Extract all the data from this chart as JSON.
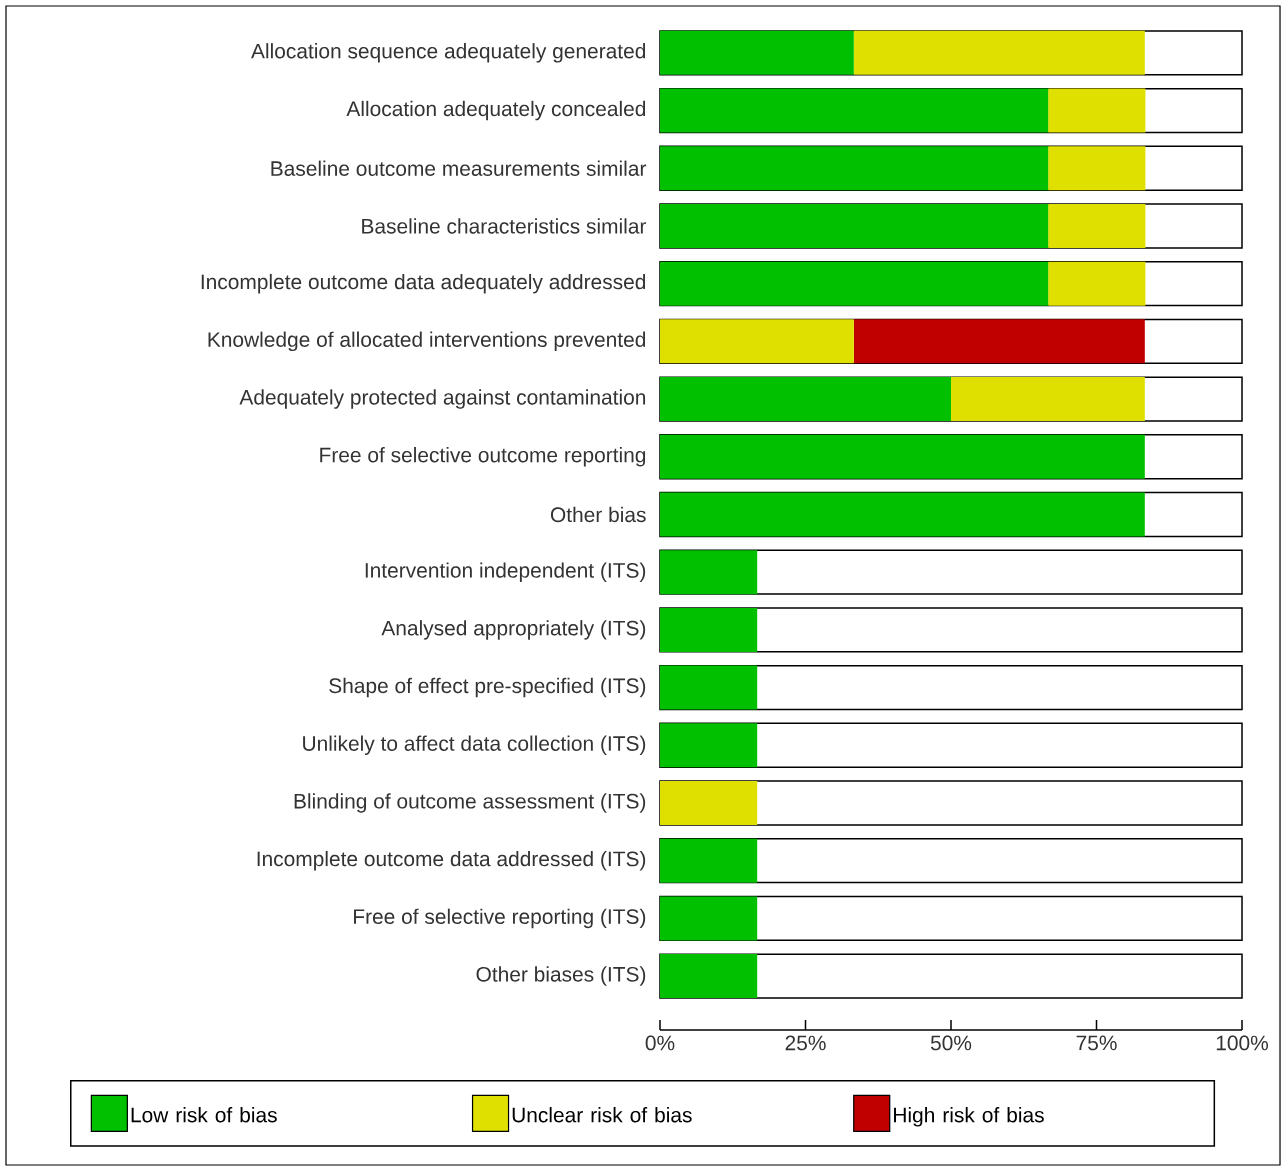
{
  "chart_data": {
    "type": "bar",
    "orientation": "horizontal",
    "stacked": true,
    "categories": [
      "Allocation sequence adequately generated",
      "Allocation adequately concealed",
      "Baseline outcome measurements similar",
      "Baseline characteristics similar",
      "Incomplete outcome data adequately addressed",
      "Knowledge of allocated interventions prevented",
      "Adequately protected against contamination",
      "Free of selective outcome reporting",
      "Other bias",
      "Intervention independent (ITS)",
      "Analysed appropriately (ITS)",
      "Shape of effect pre-specified (ITS)",
      "Unlikely to affect data collection (ITS)",
      "Blinding of outcome assessment (ITS)",
      "Incomplete outcome data addressed (ITS)",
      "Free of selective reporting (ITS)",
      "Other biases (ITS)"
    ],
    "series": [
      {
        "name": "Low risk of bias",
        "color": "#00c000",
        "values": [
          33.3,
          66.7,
          66.7,
          66.7,
          66.7,
          0,
          50,
          83.3,
          83.3,
          16.7,
          16.7,
          16.7,
          16.7,
          0,
          16.7,
          16.7,
          16.7
        ]
      },
      {
        "name": "Unclear risk of bias",
        "color": "#e0e000",
        "values": [
          50,
          16.7,
          16.7,
          16.7,
          16.7,
          33.3,
          33.3,
          0,
          0,
          0,
          0,
          0,
          0,
          16.7,
          0,
          0,
          0
        ]
      },
      {
        "name": "High risk of bias",
        "color": "#c00000",
        "values": [
          0,
          0,
          0,
          0,
          0,
          50,
          0,
          0,
          0,
          0,
          0,
          0,
          0,
          0,
          0,
          0,
          0
        ]
      }
    ],
    "xlim": [
      0,
      100
    ],
    "xticks": [
      {
        "value": 0,
        "label": "0%"
      },
      {
        "value": 25,
        "label": "25%"
      },
      {
        "value": 50,
        "label": "50%"
      },
      {
        "value": 75,
        "label": "75%"
      },
      {
        "value": 100,
        "label": "100%"
      }
    ],
    "legend": "bottom"
  }
}
